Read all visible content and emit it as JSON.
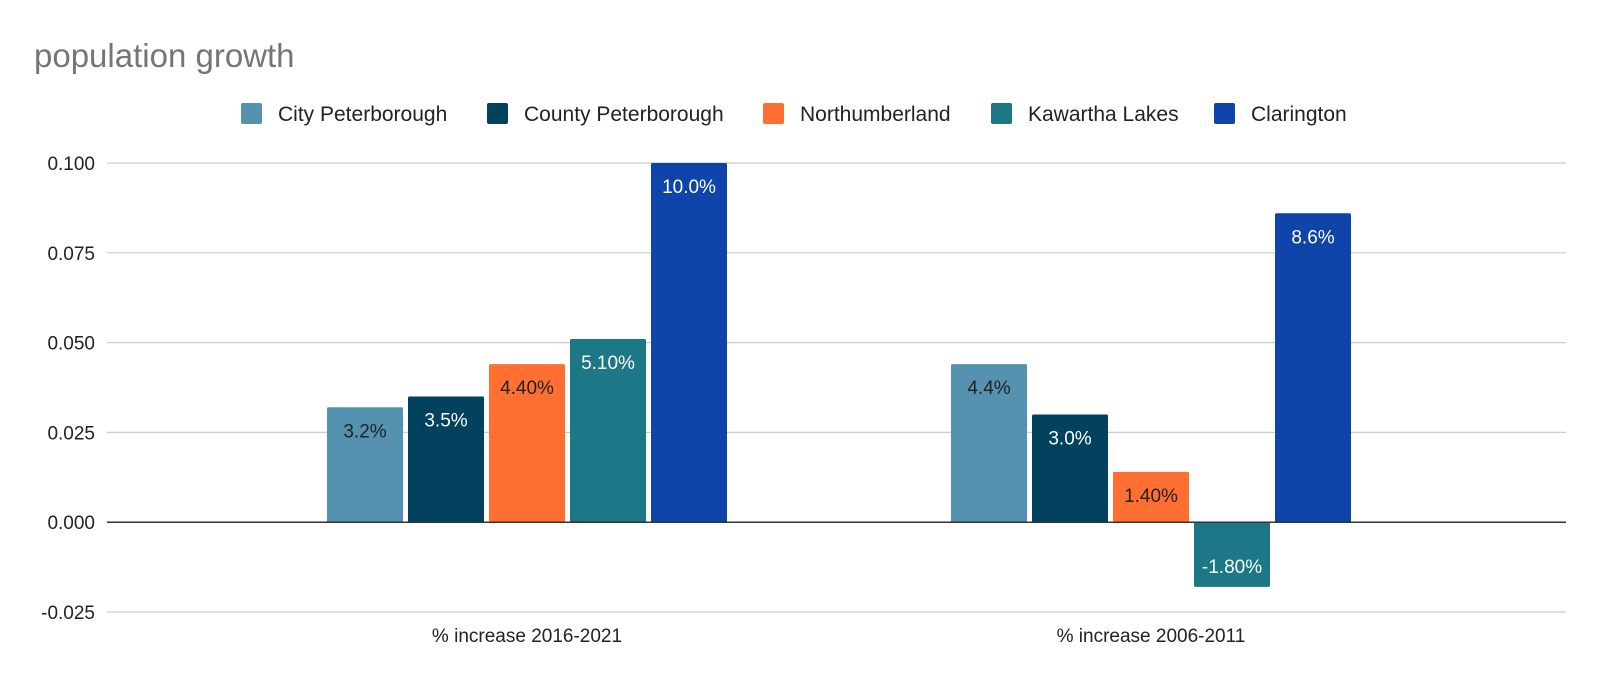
{
  "chart_data": {
    "type": "bar",
    "title": "population growth",
    "categories": [
      "% increase 2016-2021",
      "% increase 2006-2011"
    ],
    "series": [
      {
        "name": "City Peterborough",
        "color": "#5592b0",
        "values": [
          0.032,
          0.044
        ],
        "labels": [
          "3.2%",
          "4.4%"
        ],
        "label_color": "#222222"
      },
      {
        "name": "County Peterborough",
        "color": "#03425f",
        "values": [
          0.035,
          0.03
        ],
        "labels": [
          "3.5%",
          "3.0%"
        ],
        "label_color": "#ffffff"
      },
      {
        "name": "Northumberland",
        "color": "#ff6f31",
        "values": [
          0.044,
          0.014
        ],
        "labels": [
          "4.40%",
          "1.40%"
        ],
        "label_color": "#222222"
      },
      {
        "name": "Kawartha Lakes",
        "color": "#1c7787",
        "values": [
          0.051,
          -0.018
        ],
        "labels": [
          "5.10%",
          "-1.80%"
        ],
        "label_color": "#ffffff"
      },
      {
        "name": "Clarington",
        "color": "#0f45aa",
        "values": [
          0.1,
          0.086
        ],
        "labels": [
          "10.0%",
          "8.6%"
        ],
        "label_color": "#ffffff"
      }
    ],
    "ylim": [
      -0.025,
      0.1
    ],
    "yticks": [
      "-0.025",
      "0.000",
      "0.025",
      "0.050",
      "0.075",
      "0.100"
    ],
    "grid": true,
    "legend_position": "top"
  }
}
